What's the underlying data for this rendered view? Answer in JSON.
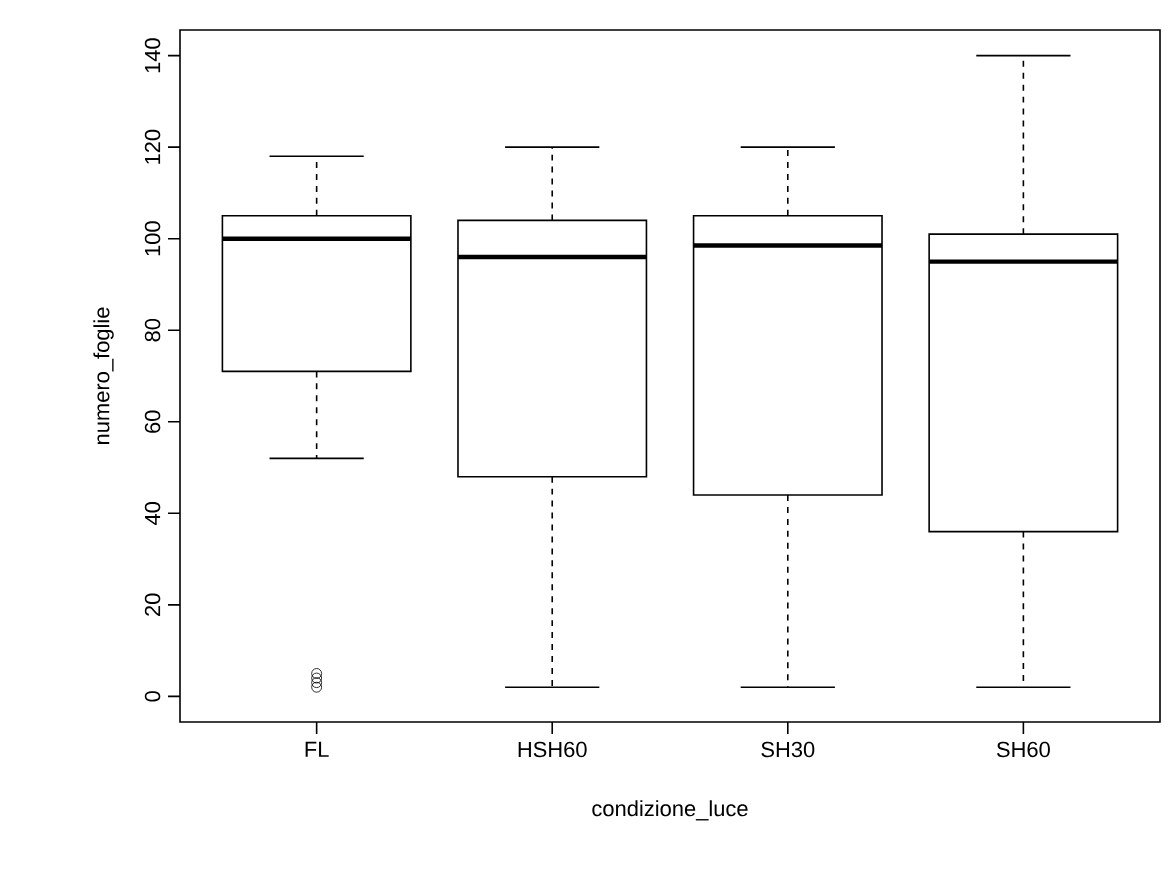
{
  "chart_data": {
    "type": "box",
    "xlabel": "condizione_luce",
    "ylabel": "numero_foglie",
    "categories": [
      "FL",
      "HSH60",
      "SH30",
      "SH60"
    ],
    "boxes": [
      {
        "low": 52,
        "q1": 71,
        "median": 100,
        "q3": 105,
        "high": 118,
        "outliers": [
          2,
          3,
          4,
          5
        ]
      },
      {
        "low": 2,
        "q1": 48,
        "median": 96,
        "q3": 104,
        "high": 120
      },
      {
        "low": 2,
        "q1": 44,
        "median": 98.5,
        "q3": 105,
        "high": 120
      },
      {
        "low": 2,
        "q1": 36,
        "median": 95,
        "q3": 101,
        "high": 140
      }
    ],
    "ylim": [
      -5.6,
      145.6
    ],
    "yticks": [
      0,
      20,
      40,
      60,
      80,
      100,
      120,
      140
    ],
    "marker": "circle"
  }
}
